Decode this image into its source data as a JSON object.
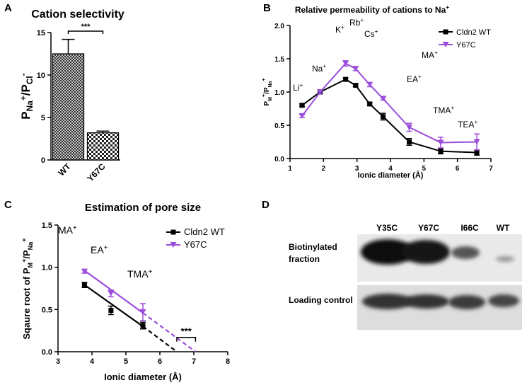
{
  "panel_labels": [
    "A",
    "B",
    "C",
    "D"
  ],
  "chart_data": [
    {
      "type": "bar",
      "title": "Cation selectivity",
      "color": "#000000",
      "categories": [
        "WT",
        "Y67C"
      ],
      "values": [
        12.5,
        3.2
      ],
      "errors": [
        1.7,
        0.2
      ],
      "ylim": [
        0,
        15
      ],
      "yticks": [
        0,
        5,
        10,
        15
      ],
      "ylabel": [
        {
          "t": "P"
        },
        {
          "t": "Na",
          "sub": true
        },
        {
          "t": "+",
          "sup": true
        },
        {
          "t": "/P"
        },
        {
          "t": "Cl",
          "sub": true
        },
        {
          "t": "-",
          "sup": true
        }
      ],
      "significance": "***"
    },
    {
      "type": "line",
      "title": [
        {
          "t": "Relative permeability of cations to Na"
        },
        {
          "t": "+",
          "sup": true
        }
      ],
      "x": [
        1.36,
        1.9,
        2.66,
        2.96,
        3.38,
        3.78,
        4.56,
        5.5,
        6.58
      ],
      "series": [
        {
          "name": "Cldn2 WT",
          "color": "#000000",
          "marker": "square",
          "values": [
            0.8,
            1.0,
            1.19,
            1.1,
            0.82,
            0.63,
            0.25,
            0.11,
            0.09
          ],
          "errors": [
            0.02,
            0.03,
            0.02,
            0.02,
            0.02,
            0.05,
            0.05,
            0.04,
            0.04
          ]
        },
        {
          "name": "Y67C",
          "color": "#9b4ddb",
          "marker": "triangle-down",
          "values": [
            0.64,
            1.0,
            1.43,
            1.35,
            1.11,
            0.9,
            0.47,
            0.24,
            0.25
          ],
          "errors": [
            0.02,
            0.03,
            0.04,
            0.03,
            0.03,
            0.02,
            0.06,
            0.08,
            0.12
          ]
        }
      ],
      "xlim": [
        1,
        7
      ],
      "xticks": [
        1,
        2,
        3,
        4,
        5,
        6,
        7
      ],
      "ylim": [
        0,
        2
      ],
      "yticks": [
        {
          "value": 0,
          "label": "0.0"
        },
        {
          "value": 0.5,
          "label": "0.5"
        },
        {
          "value": 1,
          "label": "1.0"
        },
        {
          "value": 1.5,
          "label": "1.5"
        },
        {
          "value": 2,
          "label": "2.0"
        }
      ],
      "xlabel": "Ionic diameter (Å)",
      "ylabel": [
        {
          "t": "P"
        },
        {
          "t": "M",
          "sub": true
        },
        {
          "t": "+",
          "sup": true
        },
        {
          "t": "/P"
        },
        {
          "t": "Na",
          "sub": true
        },
        {
          "t": "+",
          "sup": true
        }
      ],
      "annotations": [
        [
          {
            "t": "Li"
          },
          {
            "t": "+",
            "sup": true
          }
        ],
        [
          {
            "t": "Na"
          },
          {
            "t": "+",
            "sup": true
          }
        ],
        [
          {
            "t": "K"
          },
          {
            "t": "+",
            "sup": true
          }
        ],
        [
          {
            "t": "Rb"
          },
          {
            "t": "+",
            "sup": true
          }
        ],
        [
          {
            "t": "Cs"
          },
          {
            "t": "+",
            "sup": true
          }
        ],
        [
          {
            "t": "MA"
          },
          {
            "t": "+",
            "sup": true
          }
        ],
        [
          {
            "t": "EA"
          },
          {
            "t": "+",
            "sup": true
          }
        ],
        [
          {
            "t": "TMA"
          },
          {
            "t": "+",
            "sup": true
          }
        ],
        [
          {
            "t": "TEA"
          },
          {
            "t": "+",
            "sup": true
          }
        ]
      ]
    },
    {
      "type": "line",
      "title": [
        {
          "t": "Estimation of pore size"
        }
      ],
      "x": [
        3.78,
        4.56,
        5.5
      ],
      "series": [
        {
          "name": "Cldn2 WT",
          "color": "#000000",
          "marker": "square",
          "values": [
            0.79,
            0.49,
            0.31
          ],
          "errors": [
            0.03,
            0.05,
            0.04
          ],
          "fit_x": [
            3.75,
            5.5,
            6.5
          ],
          "fit_values": [
            0.8,
            0.3,
            0
          ]
        },
        {
          "name": "Y67C",
          "color": "#9b4ddb",
          "marker": "triangle-down",
          "values": [
            0.95,
            0.69,
            0.47
          ],
          "errors": [
            0.02,
            0.04,
            0.1
          ],
          "fit_x": [
            3.75,
            5.5,
            7.05
          ],
          "fit_values": [
            0.97,
            0.46,
            0
          ]
        }
      ],
      "xlim": [
        3,
        8
      ],
      "xticks": [
        3,
        4,
        5,
        6,
        7,
        8
      ],
      "ylim": [
        0,
        1.5
      ],
      "yticks": [
        {
          "value": 0,
          "label": "0.0"
        },
        {
          "value": 0.5,
          "label": "0.5"
        },
        {
          "value": 1,
          "label": "1.0"
        },
        {
          "value": 1.5,
          "label": "1.5"
        }
      ],
      "xlabel": "Ionic diameter (Å)",
      "ylabel": [
        {
          "t": "Sqaure root of P"
        },
        {
          "t": "M",
          "sub": true
        },
        {
          "t": "+",
          "sup": true
        },
        {
          "t": "/P"
        },
        {
          "t": "Na",
          "sub": true
        },
        {
          "t": "+",
          "sup": true
        }
      ],
      "annotations": [
        [
          {
            "t": "MA"
          },
          {
            "t": "+",
            "sup": true
          }
        ],
        [
          {
            "t": "EA"
          },
          {
            "t": "+",
            "sup": true
          }
        ],
        [
          {
            "t": "TMA"
          },
          {
            "t": "+",
            "sup": true
          }
        ]
      ],
      "significance": "***"
    }
  ],
  "blot": {
    "columns": [
      "Y35C",
      "Y67C",
      "I66C",
      "WT"
    ],
    "rows": [
      [
        "Biotinylated",
        "fraction"
      ],
      [
        "Loading control"
      ]
    ]
  }
}
